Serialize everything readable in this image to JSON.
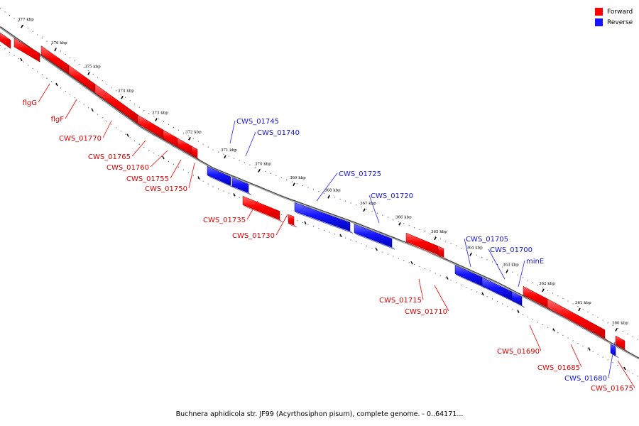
{
  "colors": {
    "forward": "#ff0000",
    "reverse": "#1515ff",
    "backbone": "#777777"
  },
  "legend": [
    {
      "label": "Forward",
      "color": "#ff0000"
    },
    {
      "label": "Reverse",
      "color": "#1515ff"
    }
  ],
  "caption": "Buchnera aphidicola str. JF99 (Acyrthosiphon pisum), complete genome. - 0..64171...",
  "ticks": [
    "377 kbp",
    "376 kbp",
    "375 kbp",
    "374 kbp",
    "373 kbp",
    "372 kbp",
    "371 kbp",
    "370 kbp",
    "369 kbp",
    "368 kbp",
    "367 kbp",
    "366 kbp",
    "365 kbp",
    "364 kbp",
    "363 kbp",
    "362 kbp",
    "361 kbp",
    "360 kbp"
  ],
  "genes": [
    {
      "label": "flgG",
      "strand": "forward"
    },
    {
      "label": "flgF",
      "strand": "forward"
    },
    {
      "label": "CWS_01770",
      "strand": "forward"
    },
    {
      "label": "CWS_01765",
      "strand": "forward"
    },
    {
      "label": "CWS_01760",
      "strand": "forward"
    },
    {
      "label": "CWS_01755",
      "strand": "forward"
    },
    {
      "label": "CWS_01750",
      "strand": "forward"
    },
    {
      "label": "CWS_01745",
      "strand": "reverse"
    },
    {
      "label": "CWS_01740",
      "strand": "reverse"
    },
    {
      "label": "CWS_01735",
      "strand": "forward"
    },
    {
      "label": "CWS_01730",
      "strand": "forward"
    },
    {
      "label": "CWS_01725",
      "strand": "reverse"
    },
    {
      "label": "CWS_01720",
      "strand": "reverse"
    },
    {
      "label": "CWS_01715",
      "strand": "forward"
    },
    {
      "label": "CWS_01710",
      "strand": "forward"
    },
    {
      "label": "CWS_01705",
      "strand": "reverse"
    },
    {
      "label": "CWS_01700",
      "strand": "reverse"
    },
    {
      "label": "minE",
      "strand": "reverse"
    },
    {
      "label": "CWS_01690",
      "strand": "forward"
    },
    {
      "label": "CWS_01685",
      "strand": "forward"
    },
    {
      "label": "CWS_01680",
      "strand": "reverse"
    },
    {
      "label": "CWS_01675",
      "strand": "forward"
    }
  ]
}
